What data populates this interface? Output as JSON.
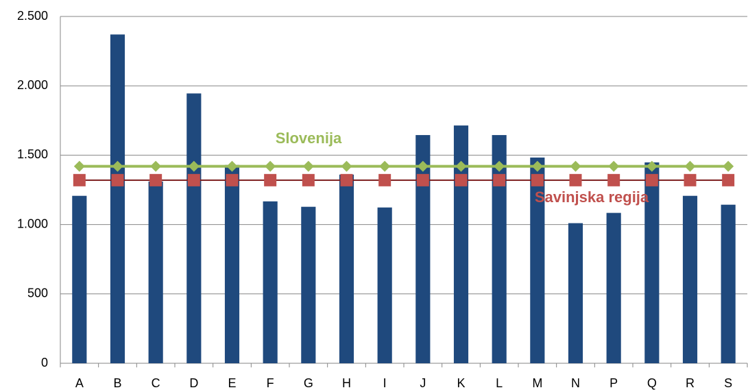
{
  "chart_data": {
    "type": "bar",
    "categories": [
      "A",
      "B",
      "C",
      "D",
      "E",
      "F",
      "G",
      "H",
      "I",
      "J",
      "K",
      "L",
      "M",
      "N",
      "P",
      "Q",
      "R",
      "S"
    ],
    "values": [
      1207,
      2370,
      1310,
      1945,
      1430,
      1167,
      1128,
      1360,
      1123,
      1645,
      1714,
      1645,
      1483,
      1010,
      1084,
      1448,
      1207,
      1143
    ],
    "color": "#1f497d",
    "series": [
      {
        "name": "Slovenija",
        "type": "line",
        "color": "#9bbb59",
        "values": [
          1420,
          1420,
          1420,
          1420,
          1420,
          1420,
          1420,
          1420,
          1420,
          1420,
          1420,
          1420,
          1420,
          1420,
          1420,
          1420,
          1420,
          1420
        ]
      },
      {
        "name": "Savinjska regija",
        "type": "line",
        "color": "#c0504d",
        "values": [
          1320,
          1320,
          1320,
          1320,
          1320,
          1320,
          1320,
          1320,
          1320,
          1320,
          1320,
          1320,
          1320,
          1320,
          1320,
          1320,
          1320,
          1320
        ]
      }
    ],
    "ylim": [
      0,
      2500
    ],
    "yticks": [
      0,
      500,
      {
        "value": 1000,
        "label": "1.000"
      },
      {
        "value": 1500,
        "label": "1.500"
      },
      {
        "value": 2000,
        "label": "2.000"
      },
      {
        "value": 2500,
        "label": "2.500"
      }
    ],
    "grid": true
  }
}
